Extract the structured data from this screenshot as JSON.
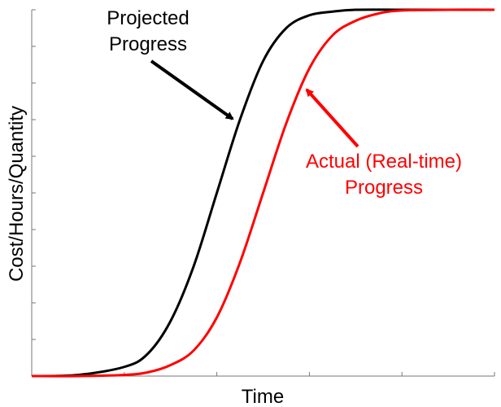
{
  "chart_data": {
    "type": "line",
    "title": "",
    "xlabel": "Time",
    "ylabel": "Cost/Hours/Quantity",
    "xlim": [
      0,
      10
    ],
    "ylim": [
      0,
      1
    ],
    "grid": false,
    "legend": "none",
    "series": [
      {
        "name": "Projected Progress",
        "color": "#000000",
        "x": [
          0,
          1,
          2,
          2.5,
          3,
          3.5,
          4,
          4.5,
          5,
          5.5,
          6,
          6.5,
          7,
          8,
          9,
          10
        ],
        "values": [
          0,
          0.003,
          0.025,
          0.06,
          0.15,
          0.3,
          0.5,
          0.7,
          0.86,
          0.95,
          0.985,
          0.995,
          1,
          1,
          1,
          1
        ]
      },
      {
        "name": "Actual (Real-time) Progress",
        "color": "#ff0000",
        "x": [
          0,
          1,
          2,
          2.5,
          3,
          3.5,
          4,
          4.5,
          5,
          5.5,
          6,
          6.5,
          7,
          7.5,
          8,
          9,
          10
        ],
        "values": [
          0,
          0,
          0.003,
          0.01,
          0.03,
          0.07,
          0.16,
          0.31,
          0.5,
          0.69,
          0.84,
          0.93,
          0.97,
          0.99,
          0.998,
          1,
          1
        ]
      }
    ],
    "annotations": [
      {
        "text_line1": "Projected",
        "text_line2": "Progress",
        "color": "#000000"
      },
      {
        "text_line1": "Actual (Real-time)",
        "text_line2": "Progress",
        "color": "#ff0000"
      }
    ]
  }
}
